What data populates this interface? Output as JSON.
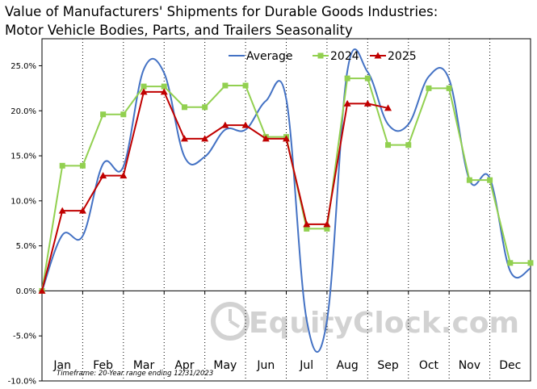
{
  "chart_data": {
    "type": "line",
    "title": "Value of Manufacturers'  Shipments  for Durable Goods Industries:",
    "subtitle": "Motor Vehicle Bodies, Parts, and Trailers Seasonality",
    "categories": [
      "Jan",
      "Feb",
      "Mar",
      "Apr",
      "May",
      "Jun",
      "Jul",
      "Aug",
      "Sep",
      "Oct",
      "Nov",
      "Dec"
    ],
    "y_ticks": [
      "25.0%",
      "20.0%",
      "15.0%",
      "10.0%",
      "5.0%",
      "0.0%",
      "-5.0%",
      "-10.0%"
    ],
    "ylim": [
      -10,
      28
    ],
    "grid": "vertical dotted",
    "legend_position": "top",
    "series": [
      {
        "name": "Average",
        "color": "#4472c4",
        "marker": "none",
        "x": [
          0,
          0.5,
          1,
          1.5,
          2,
          2.5,
          3,
          3.5,
          4,
          4.5,
          5,
          5.5,
          6,
          6.5,
          7,
          7.5,
          8,
          8.5,
          9,
          9.5,
          10,
          10.5,
          11,
          11.5,
          12
        ],
        "y": [
          0,
          6.2,
          6.1,
          14.1,
          13.8,
          24.6,
          24.2,
          14.9,
          14.9,
          17.9,
          17.9,
          21.1,
          21.3,
          -3.2,
          -3.3,
          24.4,
          24.3,
          18.5,
          18.5,
          23.8,
          23.5,
          12.3,
          12.5,
          2.2,
          2.5
        ]
      },
      {
        "name": "2024",
        "color": "#92d050",
        "marker": "square",
        "x": [
          0,
          0.5,
          1,
          1.5,
          2,
          2.5,
          3,
          3.5,
          4,
          4.5,
          5,
          5.5,
          6,
          6.5,
          7,
          7.5,
          8,
          8.5,
          9,
          9.5,
          10,
          10.5,
          11,
          11.5,
          12
        ],
        "y": [
          0,
          13.9,
          13.9,
          19.6,
          19.6,
          22.7,
          22.7,
          20.4,
          20.4,
          22.8,
          22.8,
          17.1,
          17.1,
          6.9,
          6.9,
          23.6,
          23.6,
          16.2,
          16.2,
          22.5,
          22.5,
          12.3,
          12.3,
          3.1,
          3.1
        ]
      },
      {
        "name": "2025",
        "color": "#c00000",
        "marker": "triangle",
        "x": [
          0,
          0.5,
          1,
          1.5,
          2,
          2.5,
          3,
          3.5,
          4,
          4.5,
          5,
          5.5,
          6,
          6.5,
          7,
          7.5,
          8,
          8.5
        ],
        "y": [
          0,
          8.9,
          8.9,
          12.8,
          12.8,
          22.1,
          22.1,
          16.9,
          16.9,
          18.4,
          18.4,
          16.9,
          16.9,
          7.4,
          7.4,
          20.8,
          20.8,
          20.3
        ]
      }
    ],
    "footnote": "Timeframe: 20-Year range ending 12/31/2023",
    "watermark": "EquityClock.com"
  }
}
